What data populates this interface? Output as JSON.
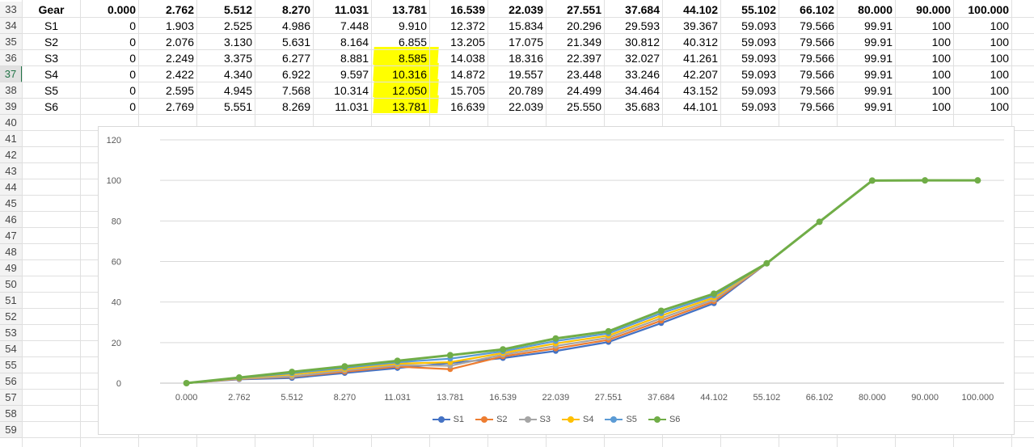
{
  "rows": [
    "33",
    "34",
    "35",
    "36",
    "37",
    "38",
    "39",
    "40",
    "41",
    "42",
    "43",
    "44",
    "45",
    "46",
    "47",
    "48",
    "49",
    "50",
    "51",
    "52",
    "53",
    "54",
    "55",
    "56",
    "57",
    "58",
    "59"
  ],
  "active_row": "37",
  "header": [
    "Gear",
    "0.000",
    "2.762",
    "5.512",
    "8.270",
    "11.031",
    "13.781",
    "16.539",
    "22.039",
    "27.551",
    "37.684",
    "44.102",
    "55.102",
    "66.102",
    "80.000",
    "90.000",
    "100.000"
  ],
  "table": [
    [
      "S1",
      "0",
      "1.903",
      "2.525",
      "4.986",
      "7.448",
      "9.910",
      "12.372",
      "15.834",
      "20.296",
      "29.593",
      "39.367",
      "59.093",
      "79.566",
      "99.91",
      "100",
      "100"
    ],
    [
      "S2",
      "0",
      "2.076",
      "3.130",
      "5.631",
      "8.164",
      "6.855",
      "13.205",
      "17.075",
      "21.349",
      "30.812",
      "40.312",
      "59.093",
      "79.566",
      "99.91",
      "100",
      "100"
    ],
    [
      "S3",
      "0",
      "2.249",
      "3.375",
      "6.277",
      "8.881",
      "8.585",
      "14.038",
      "18.316",
      "22.397",
      "32.027",
      "41.261",
      "59.093",
      "79.566",
      "99.91",
      "100",
      "100"
    ],
    [
      "S4",
      "0",
      "2.422",
      "4.340",
      "6.922",
      "9.597",
      "10.316",
      "14.872",
      "19.557",
      "23.448",
      "33.246",
      "42.207",
      "59.093",
      "79.566",
      "99.91",
      "100",
      "100"
    ],
    [
      "S5",
      "0",
      "2.595",
      "4.945",
      "7.568",
      "10.314",
      "12.050",
      "15.705",
      "20.789",
      "24.499",
      "34.464",
      "43.152",
      "59.093",
      "79.566",
      "99.91",
      "100",
      "100"
    ],
    [
      "S6",
      "0",
      "2.769",
      "5.551",
      "8.269",
      "11.031",
      "13.781",
      "16.639",
      "22.039",
      "25.550",
      "35.683",
      "44.101",
      "59.093",
      "79.566",
      "99.91",
      "100",
      "100"
    ]
  ],
  "highlight_color": "#ffff00",
  "chart_data": {
    "type": "line",
    "categories": [
      "0.000",
      "2.762",
      "5.512",
      "8.270",
      "11.031",
      "13.781",
      "16.539",
      "22.039",
      "27.551",
      "37.684",
      "44.102",
      "55.102",
      "66.102",
      "80.000",
      "90.000",
      "100.000"
    ],
    "ylim": [
      0,
      120
    ],
    "yticks": [
      "0",
      "20",
      "40",
      "60",
      "80",
      "100",
      "120"
    ],
    "grid": true,
    "legend_position": "bottom",
    "series": [
      {
        "name": "S1",
        "color": "#4472c4",
        "values": [
          0,
          1.903,
          2.525,
          4.986,
          7.448,
          9.91,
          12.372,
          15.834,
          20.296,
          29.593,
          39.367,
          59.093,
          79.566,
          99.91,
          100,
          100
        ]
      },
      {
        "name": "S2",
        "color": "#ed7d31",
        "values": [
          0,
          2.076,
          3.13,
          5.631,
          8.164,
          6.855,
          13.205,
          17.075,
          21.349,
          30.812,
          40.312,
          59.093,
          79.566,
          99.91,
          100,
          100
        ]
      },
      {
        "name": "S3",
        "color": "#a5a5a5",
        "values": [
          0,
          2.249,
          3.375,
          6.277,
          8.881,
          8.585,
          14.038,
          18.316,
          22.397,
          32.027,
          41.261,
          59.093,
          79.566,
          99.91,
          100,
          100
        ]
      },
      {
        "name": "S4",
        "color": "#ffc000",
        "values": [
          0,
          2.422,
          4.34,
          6.922,
          9.597,
          10.316,
          14.872,
          19.557,
          23.448,
          33.246,
          42.207,
          59.093,
          79.566,
          99.91,
          100,
          100
        ]
      },
      {
        "name": "S5",
        "color": "#5b9bd5",
        "values": [
          0,
          2.595,
          4.945,
          7.568,
          10.314,
          12.05,
          15.705,
          20.789,
          24.499,
          34.464,
          43.152,
          59.093,
          79.566,
          99.91,
          100,
          100
        ]
      },
      {
        "name": "S6",
        "color": "#70ad47",
        "values": [
          0,
          2.769,
          5.551,
          8.269,
          11.031,
          13.781,
          16.639,
          22.039,
          25.55,
          35.683,
          44.101,
          59.093,
          79.566,
          99.91,
          100,
          100
        ]
      }
    ]
  }
}
